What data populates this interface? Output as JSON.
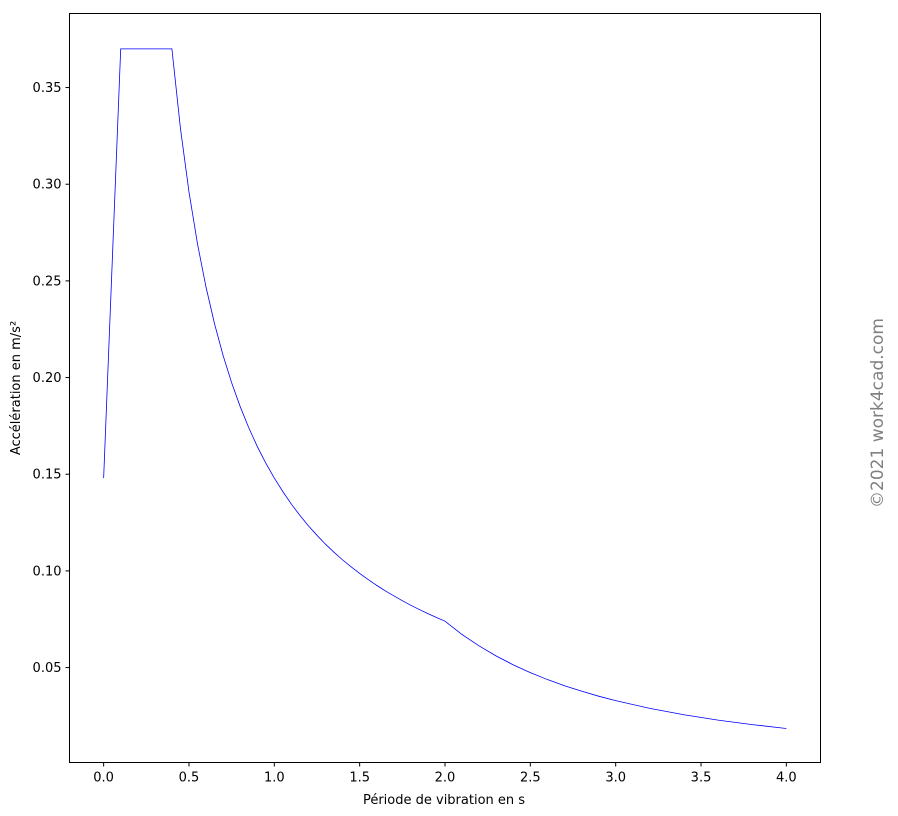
{
  "chart_data": {
    "type": "line",
    "title": "",
    "xlabel": "Période de vibration en s",
    "ylabel": "Accélération en m/s²",
    "xlim": [
      -0.2,
      4.2
    ],
    "ylim": [
      0.0009,
      0.3883
    ],
    "grid": false,
    "xticks": [
      "0.0",
      "0.5",
      "1.0",
      "1.5",
      "2.0",
      "2.5",
      "3.0",
      "3.5",
      "4.0"
    ],
    "yticks": [
      "0.05",
      "0.10",
      "0.15",
      "0.20",
      "0.25",
      "0.30",
      "0.35"
    ],
    "series": [
      {
        "color": "#0000ff",
        "x": [
          0,
          0.1,
          0.4,
          0.45,
          0.5,
          0.55,
          0.6,
          0.65,
          0.7,
          0.75,
          0.8,
          0.85,
          0.9,
          0.95,
          1.0,
          1.05,
          1.1,
          1.15,
          1.2,
          1.25,
          1.3,
          1.35,
          1.4,
          1.45,
          1.5,
          1.55,
          1.6,
          1.65,
          1.7,
          1.75,
          1.8,
          1.85,
          1.9,
          1.95,
          2.0,
          2.1,
          2.2,
          2.3,
          2.4,
          2.5,
          2.6,
          2.7,
          2.8,
          2.9,
          3.0,
          3.2,
          3.4,
          3.6,
          3.8,
          4.0
        ],
        "y": [
          0.148,
          0.37,
          0.37,
          0.3289,
          0.296,
          0.2691,
          0.2467,
          0.2277,
          0.2114,
          0.1973,
          0.185,
          0.1741,
          0.1644,
          0.1558,
          0.148,
          0.141,
          0.1345,
          0.1287,
          0.1233,
          0.1184,
          0.1138,
          0.1096,
          0.1057,
          0.1021,
          0.0987,
          0.0955,
          0.0925,
          0.0897,
          0.0871,
          0.0846,
          0.0822,
          0.08,
          0.0779,
          0.0759,
          0.074,
          0.0671,
          0.0612,
          0.056,
          0.0514,
          0.0474,
          0.0438,
          0.0406,
          0.0378,
          0.0352,
          0.0329,
          0.0289,
          0.0256,
          0.0228,
          0.0205,
          0.0185
        ]
      }
    ]
  },
  "watermark": "©2021 work4cad.com"
}
